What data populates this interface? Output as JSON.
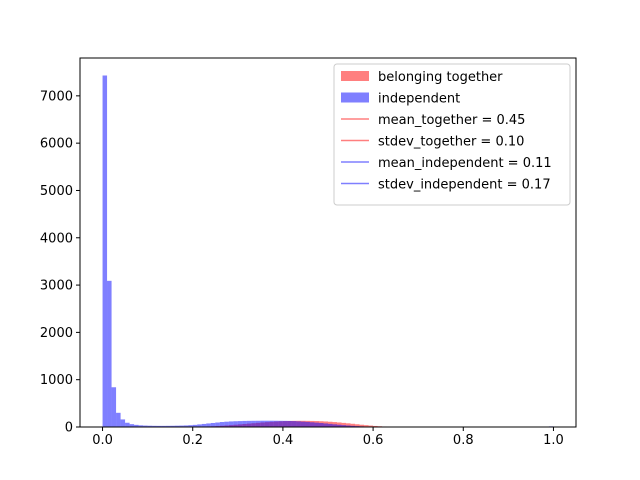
{
  "chart_data": {
    "type": "bar",
    "title": "",
    "xlabel": "",
    "ylabel": "",
    "xlim": [
      -0.05,
      1.05
    ],
    "ylim": [
      0,
      7800
    ],
    "xticks": [
      0.0,
      0.2,
      0.4,
      0.6,
      0.8,
      1.0
    ],
    "xtick_labels": [
      "0.0",
      "0.2",
      "0.4",
      "0.6",
      "0.8",
      "1.0"
    ],
    "yticks": [
      0,
      1000,
      2000,
      3000,
      4000,
      5000,
      6000,
      7000
    ],
    "ytick_labels": [
      "0",
      "1000",
      "2000",
      "3000",
      "4000",
      "5000",
      "6000",
      "7000"
    ],
    "grid": false,
    "legend_position": "top-right",
    "bin_width": 0.01,
    "series": [
      {
        "name": "belonging together",
        "color": "#ff0000",
        "alpha": 0.5,
        "bin_starts": [
          0.2,
          0.21,
          0.22,
          0.23,
          0.24,
          0.25,
          0.26,
          0.27,
          0.28,
          0.29,
          0.3,
          0.31,
          0.32,
          0.33,
          0.34,
          0.35,
          0.36,
          0.37,
          0.38,
          0.39,
          0.4,
          0.41,
          0.42,
          0.43,
          0.44,
          0.45,
          0.46,
          0.47,
          0.48,
          0.49,
          0.5,
          0.51,
          0.52,
          0.53,
          0.54,
          0.55,
          0.56,
          0.57,
          0.58,
          0.59,
          0.6,
          0.61,
          0.62,
          0.63,
          0.64
        ],
        "values": [
          5,
          7,
          9,
          12,
          15,
          20,
          26,
          33,
          40,
          48,
          56,
          64,
          72,
          80,
          88,
          96,
          103,
          110,
          116,
          121,
          125,
          128,
          130,
          131,
          131,
          130,
          128,
          126,
          122,
          117,
          111,
          104,
          96,
          87,
          78,
          68,
          58,
          48,
          39,
          30,
          22,
          16,
          11,
          7,
          4
        ]
      },
      {
        "name": "independent",
        "color": "#0000ff",
        "alpha": 0.5,
        "bin_starts": [
          0.0,
          0.01,
          0.02,
          0.03,
          0.04,
          0.05,
          0.06,
          0.07,
          0.08,
          0.09,
          0.1,
          0.11,
          0.12,
          0.13,
          0.14,
          0.15,
          0.16,
          0.17,
          0.18,
          0.19,
          0.2,
          0.21,
          0.22,
          0.23,
          0.24,
          0.25,
          0.26,
          0.27,
          0.28,
          0.29,
          0.3,
          0.31,
          0.32,
          0.33,
          0.34,
          0.35,
          0.36,
          0.37,
          0.38,
          0.39,
          0.4,
          0.41,
          0.42,
          0.43,
          0.44,
          0.45,
          0.46,
          0.47,
          0.48,
          0.49,
          0.5,
          0.51,
          0.52,
          0.53,
          0.54,
          0.55,
          0.56,
          0.57,
          0.58,
          0.59,
          0.6,
          0.61,
          0.62,
          0.63,
          0.64,
          0.65,
          0.66,
          0.67,
          0.68,
          0.69,
          0.7,
          0.71,
          0.72,
          0.73,
          0.74,
          0.75,
          0.76,
          0.77,
          0.78,
          0.79,
          0.8,
          0.81,
          0.82,
          0.83,
          0.84,
          0.85,
          0.86,
          0.87,
          0.88,
          0.89,
          0.9,
          0.91,
          0.92,
          0.93,
          0.94,
          0.95,
          0.96,
          0.97,
          0.98,
          0.99
        ],
        "values": [
          7430,
          3090,
          840,
          300,
          160,
          90,
          60,
          45,
          35,
          30,
          27,
          25,
          24,
          24,
          25,
          26,
          28,
          30,
          33,
          38,
          45,
          55,
          65,
          75,
          85,
          95,
          105,
          112,
          118,
          122,
          125,
          128,
          130,
          131,
          132,
          133,
          133,
          133,
          132,
          131,
          130,
          128,
          125,
          120,
          114,
          108,
          100,
          92,
          84,
          75,
          66,
          57,
          48,
          40,
          32,
          25,
          19,
          14,
          10,
          7,
          5,
          4,
          3,
          2,
          2,
          2,
          1,
          1,
          1,
          1,
          1,
          1,
          1,
          1,
          1,
          1,
          1,
          1,
          1,
          1,
          1,
          1,
          1,
          1,
          1,
          1,
          1,
          1,
          1,
          1,
          1,
          1,
          1,
          1,
          1,
          1,
          1,
          1,
          1,
          14
        ]
      }
    ],
    "legend": [
      {
        "label": "belonging together",
        "kind": "patch",
        "color": "#ff0000",
        "alpha": 0.5
      },
      {
        "label": "independent",
        "kind": "patch",
        "color": "#0000ff",
        "alpha": 0.5
      },
      {
        "label": "mean_together = 0.45",
        "kind": "line",
        "color": "#ff0000",
        "alpha": 0.5
      },
      {
        "label": "stdev_together = 0.10",
        "kind": "line",
        "color": "#ff0000",
        "alpha": 0.5
      },
      {
        "label": "mean_independent = 0.11",
        "kind": "line",
        "color": "#0000ff",
        "alpha": 0.5
      },
      {
        "label": "stdev_independent = 0.17",
        "kind": "line",
        "color": "#0000ff",
        "alpha": 0.5
      }
    ]
  }
}
